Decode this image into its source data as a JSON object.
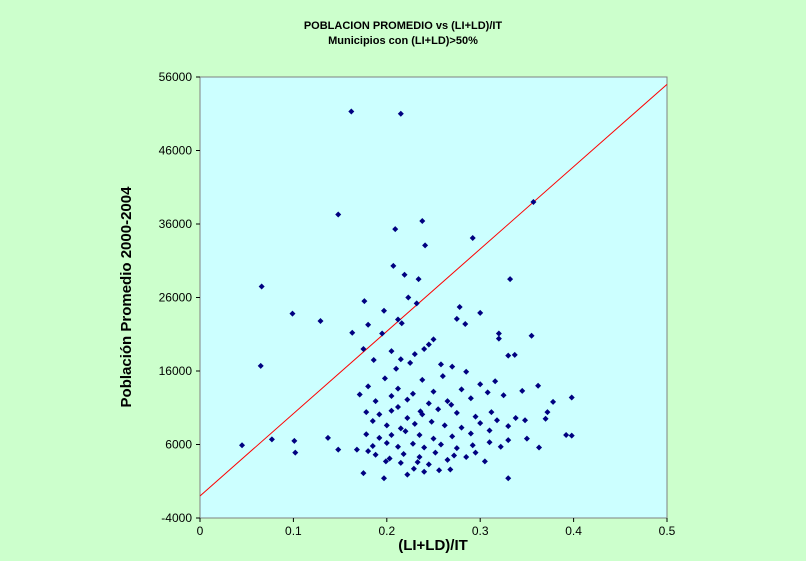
{
  "colors": {
    "page_background": "#ccffcc",
    "plot_background": "#ccffff",
    "marker": "#000080",
    "reference_line": "#ff0000"
  },
  "chart_data": {
    "type": "scatter",
    "title": "POBLACION PROMEDIO vs (LI+LD)/IT",
    "subtitle": "Municipios con (LI+LD)>50%",
    "xlabel": "(LI+LD)/IT",
    "ylabel": "Población Promedio 2000-2004",
    "xlim": [
      0,
      0.5
    ],
    "ylim": [
      -4000,
      56000
    ],
    "x_ticks": [
      0,
      0.1,
      0.2,
      0.3,
      0.4,
      0.5
    ],
    "x_tick_labels": [
      "0",
      "0.1",
      "0.2",
      "0.3",
      "0.4",
      "0.5"
    ],
    "y_ticks": [
      -4000,
      6000,
      16000,
      26000,
      36000,
      46000,
      56000
    ],
    "y_tick_labels": [
      "-4000",
      "6000",
      "16000",
      "26000",
      "36000",
      "46000",
      "56000"
    ],
    "grid": false,
    "legend": "none",
    "marker_shape": "diamond",
    "reference_line": {
      "x": [
        0,
        0.5
      ],
      "y": [
        -1000,
        55000
      ]
    },
    "points": [
      [
        0.162,
        51300
      ],
      [
        0.215,
        51000
      ],
      [
        0.357,
        39000
      ],
      [
        0.148,
        37300
      ],
      [
        0.238,
        36400
      ],
      [
        0.209,
        35300
      ],
      [
        0.292,
        34100
      ],
      [
        0.241,
        33100
      ],
      [
        0.066,
        27500
      ],
      [
        0.207,
        30300
      ],
      [
        0.219,
        29100
      ],
      [
        0.234,
        28500
      ],
      [
        0.332,
        28500
      ],
      [
        0.176,
        25500
      ],
      [
        0.223,
        26000
      ],
      [
        0.197,
        24200
      ],
      [
        0.099,
        23800
      ],
      [
        0.129,
        22800
      ],
      [
        0.212,
        23000
      ],
      [
        0.216,
        22500
      ],
      [
        0.163,
        21200
      ],
      [
        0.18,
        22300
      ],
      [
        0.232,
        25200
      ],
      [
        0.278,
        24700
      ],
      [
        0.3,
        23900
      ],
      [
        0.275,
        23100
      ],
      [
        0.284,
        22400
      ],
      [
        0.32,
        21100
      ],
      [
        0.355,
        20800
      ],
      [
        0.32,
        20400
      ],
      [
        0.25,
        20300
      ],
      [
        0.245,
        19600
      ],
      [
        0.24,
        19000
      ],
      [
        0.23,
        18300
      ],
      [
        0.195,
        21100
      ],
      [
        0.175,
        19000
      ],
      [
        0.205,
        18700
      ],
      [
        0.186,
        17500
      ],
      [
        0.065,
        16700
      ],
      [
        0.215,
        17600
      ],
      [
        0.225,
        17100
      ],
      [
        0.258,
        16900
      ],
      [
        0.27,
        16600
      ],
      [
        0.285,
        15900
      ],
      [
        0.33,
        18100
      ],
      [
        0.337,
        18200
      ],
      [
        0.362,
        14000
      ],
      [
        0.316,
        14600
      ],
      [
        0.3,
        14200
      ],
      [
        0.26,
        15300
      ],
      [
        0.238,
        14800
      ],
      [
        0.21,
        16300
      ],
      [
        0.198,
        15000
      ],
      [
        0.18,
        13900
      ],
      [
        0.171,
        12800
      ],
      [
        0.188,
        11900
      ],
      [
        0.205,
        12600
      ],
      [
        0.222,
        12100
      ],
      [
        0.245,
        11600
      ],
      [
        0.265,
        11900
      ],
      [
        0.29,
        12300
      ],
      [
        0.308,
        13100
      ],
      [
        0.325,
        12700
      ],
      [
        0.345,
        13300
      ],
      [
        0.378,
        11800
      ],
      [
        0.398,
        12400
      ],
      [
        0.312,
        10400
      ],
      [
        0.295,
        9800
      ],
      [
        0.275,
        10300
      ],
      [
        0.255,
        10800
      ],
      [
        0.238,
        10100
      ],
      [
        0.222,
        9600
      ],
      [
        0.205,
        10600
      ],
      [
        0.192,
        10100
      ],
      [
        0.178,
        10400
      ],
      [
        0.185,
        9200
      ],
      [
        0.2,
        8600
      ],
      [
        0.215,
        8200
      ],
      [
        0.23,
        8800
      ],
      [
        0.248,
        9100
      ],
      [
        0.262,
        8600
      ],
      [
        0.28,
        8300
      ],
      [
        0.3,
        8900
      ],
      [
        0.318,
        9300
      ],
      [
        0.338,
        9600
      ],
      [
        0.348,
        9300
      ],
      [
        0.37,
        9500
      ],
      [
        0.372,
        10400
      ],
      [
        0.33,
        8500
      ],
      [
        0.31,
        7900
      ],
      [
        0.29,
        7500
      ],
      [
        0.27,
        7100
      ],
      [
        0.25,
        6800
      ],
      [
        0.235,
        7300
      ],
      [
        0.22,
        7800
      ],
      [
        0.205,
        7300
      ],
      [
        0.192,
        6900
      ],
      [
        0.178,
        7400
      ],
      [
        0.168,
        5300
      ],
      [
        0.185,
        5800
      ],
      [
        0.2,
        6200
      ],
      [
        0.212,
        5700
      ],
      [
        0.228,
        6100
      ],
      [
        0.24,
        5600
      ],
      [
        0.258,
        6000
      ],
      [
        0.275,
        5500
      ],
      [
        0.292,
        5900
      ],
      [
        0.31,
        6300
      ],
      [
        0.322,
        5700
      ],
      [
        0.33,
        6600
      ],
      [
        0.363,
        5600
      ],
      [
        0.392,
        7300
      ],
      [
        0.398,
        7200
      ],
      [
        0.295,
        4900
      ],
      [
        0.272,
        4500
      ],
      [
        0.252,
        4900
      ],
      [
        0.235,
        4300
      ],
      [
        0.218,
        4700
      ],
      [
        0.203,
        4100
      ],
      [
        0.188,
        4600
      ],
      [
        0.18,
        5100
      ],
      [
        0.199,
        3700
      ],
      [
        0.215,
        3500
      ],
      [
        0.233,
        3600
      ],
      [
        0.245,
        3300
      ],
      [
        0.265,
        3900
      ],
      [
        0.285,
        4300
      ],
      [
        0.305,
        3700
      ],
      [
        0.045,
        5900
      ],
      [
        0.077,
        6700
      ],
      [
        0.101,
        6500
      ],
      [
        0.102,
        4900
      ],
      [
        0.137,
        6900
      ],
      [
        0.148,
        5300
      ],
      [
        0.175,
        2100
      ],
      [
        0.197,
        1400
      ],
      [
        0.222,
        1900
      ],
      [
        0.24,
        2300
      ],
      [
        0.268,
        2600
      ],
      [
        0.33,
        1400
      ],
      [
        0.212,
        13600
      ],
      [
        0.228,
        12900
      ],
      [
        0.25,
        13200
      ],
      [
        0.28,
        13500
      ],
      [
        0.212,
        11100
      ],
      [
        0.236,
        10500
      ],
      [
        0.269,
        11400
      ],
      [
        0.229,
        2700
      ],
      [
        0.256,
        2500
      ],
      [
        0.35,
        6800
      ]
    ]
  }
}
